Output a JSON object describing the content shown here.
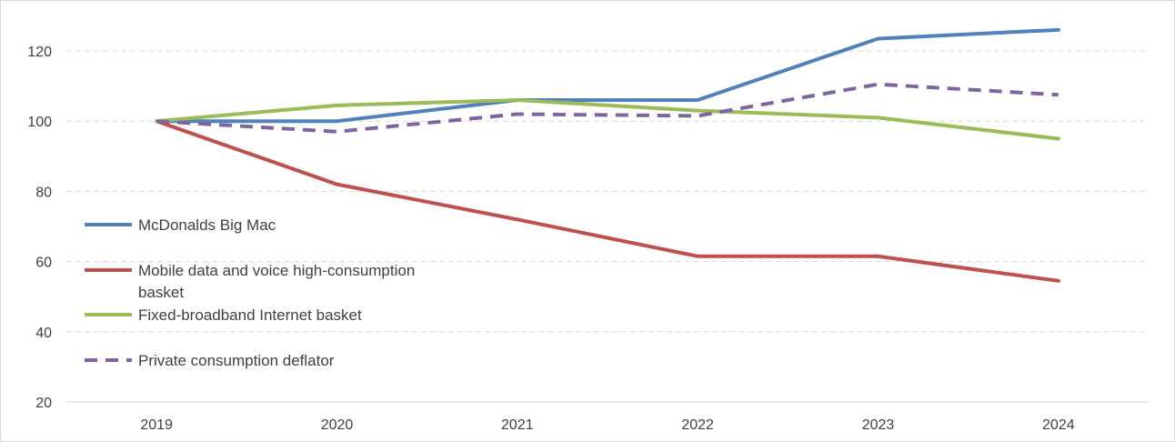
{
  "chart_data": {
    "type": "line",
    "title": "",
    "xlabel": "",
    "ylabel": "",
    "categories": [
      "2019",
      "2020",
      "2021",
      "2022",
      "2023",
      "2024"
    ],
    "ylim": [
      20,
      130
    ],
    "yticks": [
      20,
      40,
      60,
      80,
      100,
      120
    ],
    "grid": true,
    "legend_position": "left",
    "series": [
      {
        "name": "McDonalds Big Mac",
        "color": "#4f81bd",
        "dashed": false,
        "values": [
          100,
          100,
          106,
          106,
          123.5,
          126
        ]
      },
      {
        "name": "Mobile data and voice high-consumption basket",
        "legend_lines": [
          "Mobile data and voice high-consumption",
          "basket"
        ],
        "color": "#c0504d",
        "dashed": false,
        "values": [
          100,
          82,
          72,
          61.5,
          61.5,
          54.5
        ]
      },
      {
        "name": "Fixed-broadband Internet basket",
        "color": "#9bbb59",
        "dashed": false,
        "values": [
          100,
          104.5,
          106,
          103,
          101,
          95
        ]
      },
      {
        "name": "Private consumption deflator",
        "color": "#8064a2",
        "dashed": true,
        "values": [
          100,
          97,
          102,
          101.5,
          110.5,
          107.5
        ]
      }
    ]
  }
}
